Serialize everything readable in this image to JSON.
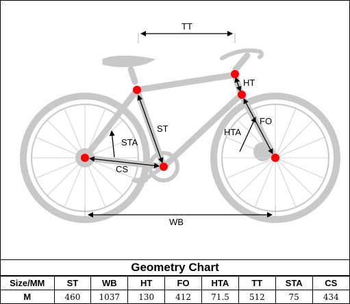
{
  "diagram": {
    "labels": {
      "tt": "TT",
      "ht": "HT",
      "st": "ST",
      "fo": "FO",
      "hta": "HTA",
      "sta": "STA",
      "cs": "CS",
      "wb": "WB"
    }
  },
  "chart": {
    "title": "Geometry Chart",
    "headers": [
      "Size/MM",
      "ST",
      "WB",
      "HT",
      "FO",
      "HTA",
      "TT",
      "STA",
      "CS"
    ],
    "rows": [
      [
        "M",
        "460",
        "1037",
        "130",
        "412",
        "71.5",
        "512",
        "75",
        "434"
      ]
    ]
  },
  "colors": {
    "bike": "#c8c8c8",
    "marker": "#ff0000",
    "arrow": "#000000"
  }
}
